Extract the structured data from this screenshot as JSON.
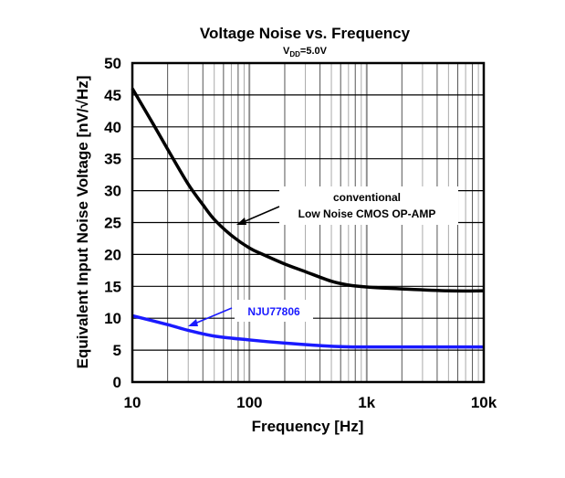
{
  "chart_data": {
    "type": "line",
    "title": "Voltage Noise vs. Frequency",
    "subtitle": {
      "main": "V",
      "sub": "DD",
      "rest": "=5.0V"
    },
    "xlabel": "Frequency [Hz]",
    "ylabel": "Equivalent Input Noise Voltage [nV/√Hz]",
    "x_scale": "log",
    "xlim": [
      10,
      10000
    ],
    "ylim": [
      0,
      50
    ],
    "grid": true,
    "x_ticks": [
      {
        "value": 10,
        "label": "10"
      },
      {
        "value": 100,
        "label": "100"
      },
      {
        "value": 1000,
        "label": "1k"
      },
      {
        "value": 10000,
        "label": "10k"
      }
    ],
    "y_ticks": [
      0,
      5,
      10,
      15,
      20,
      25,
      30,
      35,
      40,
      45,
      50
    ],
    "series": [
      {
        "name": "conventional Low Noise CMOS OP-AMP",
        "annotation_lines": [
          "conventional",
          "Low Noise CMOS OP-AMP"
        ],
        "color": "#000000",
        "x": [
          10,
          15,
          20,
          30,
          40,
          50,
          70,
          100,
          130,
          200,
          300,
          500,
          700,
          1000,
          2000,
          5000,
          10000
        ],
        "y": [
          46,
          40.5,
          36.5,
          31,
          27.8,
          25.5,
          23,
          21,
          20,
          18.5,
          17.3,
          15.8,
          15.2,
          14.9,
          14.6,
          14.3,
          14.3
        ]
      },
      {
        "name": "NJU77806",
        "annotation_lines": [
          "NJU77806"
        ],
        "color": "#1a1aff",
        "x": [
          10,
          20,
          30,
          50,
          100,
          200,
          500,
          1000,
          10000
        ],
        "y": [
          10.4,
          9,
          8.1,
          7.2,
          6.6,
          6.1,
          5.6,
          5.5,
          5.5
        ]
      }
    ]
  }
}
